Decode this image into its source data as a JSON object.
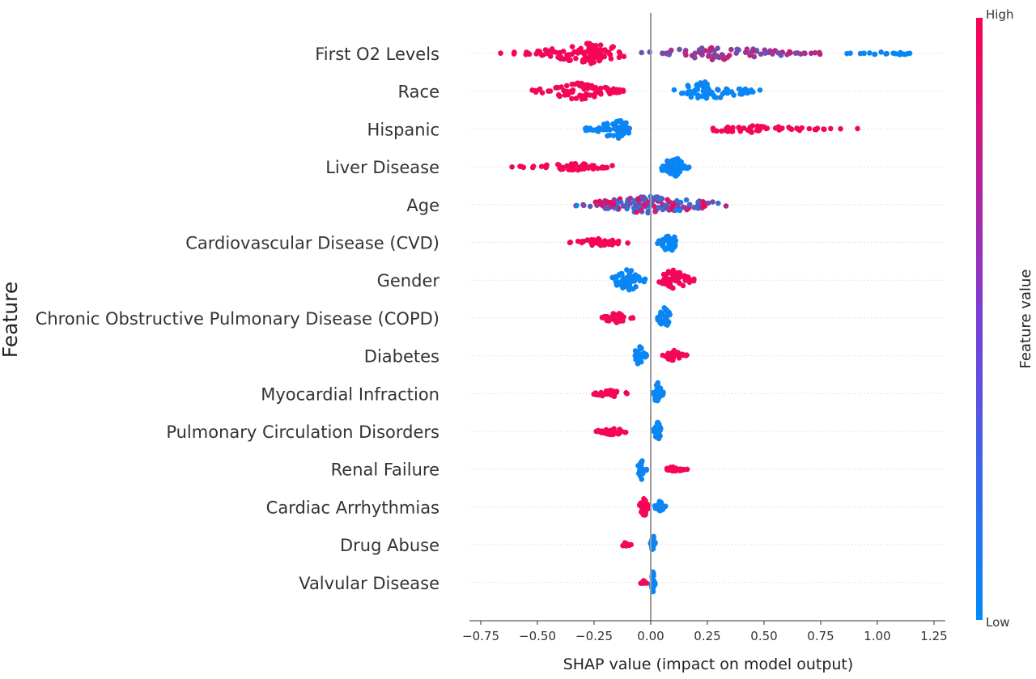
{
  "chart_data": {
    "type": "scatter",
    "subtype": "shap-beeswarm",
    "title": "",
    "xlabel": "SHAP value (impact on model output)",
    "ylabel": "Feature",
    "xlim": [
      -0.8,
      1.3
    ],
    "xticks": [
      -0.75,
      -0.5,
      -0.25,
      0.0,
      0.25,
      0.5,
      0.75,
      1.0,
      1.25
    ],
    "xtick_labels": [
      "−0.75",
      "−0.50",
      "−0.25",
      "0.00",
      "0.25",
      "0.50",
      "0.75",
      "1.00",
      "1.25"
    ],
    "grid": "horizontal dotted row guides",
    "colorbar": {
      "title": "Feature value",
      "high_label": "High",
      "low_label": "Low",
      "high_color": "#ff0052",
      "low_color": "#008bfb",
      "placement": "right"
    },
    "features": [
      {
        "name": "First O2 Levels",
        "groups": [
          {
            "xmin": -0.7,
            "xmax": -0.1,
            "peak": -0.27,
            "color": "high",
            "n": 110,
            "spread": 0.85
          },
          {
            "xmin": -0.1,
            "xmax": 0.78,
            "peak": 0.3,
            "color": "mid",
            "n": 85,
            "spread": 0.55
          },
          {
            "xmin": 0.82,
            "xmax": 1.24,
            "peak": 1.05,
            "color": "low",
            "n": 22,
            "spread": 0.15
          }
        ]
      },
      {
        "name": "Race",
        "groups": [
          {
            "xmin": -0.55,
            "xmax": -0.1,
            "peak": -0.33,
            "color": "high",
            "n": 75,
            "spread": 0.75
          },
          {
            "xmin": 0.1,
            "xmax": 0.54,
            "peak": 0.25,
            "color": "low",
            "n": 75,
            "spread": 0.8
          }
        ]
      },
      {
        "name": "Hispanic",
        "groups": [
          {
            "xmin": -0.32,
            "xmax": -0.08,
            "peak": -0.15,
            "color": "low",
            "n": 60,
            "spread": 0.85
          },
          {
            "xmin": 0.22,
            "xmax": 0.95,
            "peak": 0.45,
            "color": "high",
            "n": 60,
            "spread": 0.3
          }
        ]
      },
      {
        "name": "Liver Disease",
        "groups": [
          {
            "xmin": -0.65,
            "xmax": -0.12,
            "peak": -0.35,
            "color": "high",
            "n": 55,
            "spread": 0.3
          },
          {
            "xmin": 0.03,
            "xmax": 0.18,
            "peak": 0.1,
            "color": "low",
            "n": 55,
            "spread": 0.9
          }
        ]
      },
      {
        "name": "Age",
        "groups": [
          {
            "xmin": -0.38,
            "xmax": 0.4,
            "peak": 0.0,
            "color": "mixed",
            "n": 150,
            "spread": 0.75
          }
        ]
      },
      {
        "name": "Cardiovascular Disease (CVD)",
        "groups": [
          {
            "xmin": -0.37,
            "xmax": -0.09,
            "peak": -0.22,
            "color": "high",
            "n": 40,
            "spread": 0.35
          },
          {
            "xmin": 0.02,
            "xmax": 0.12,
            "peak": 0.08,
            "color": "low",
            "n": 40,
            "spread": 0.9
          }
        ]
      },
      {
        "name": "Gender",
        "groups": [
          {
            "xmin": -0.2,
            "xmax": -0.02,
            "peak": -0.1,
            "color": "low",
            "n": 55,
            "spread": 0.95
          },
          {
            "xmin": 0.03,
            "xmax": 0.21,
            "peak": 0.1,
            "color": "high",
            "n": 55,
            "spread": 0.95
          }
        ]
      },
      {
        "name": "Chronic Obstructive Pulmonary Disease (COPD)",
        "groups": [
          {
            "xmin": -0.23,
            "xmax": -0.07,
            "peak": -0.15,
            "color": "high",
            "n": 35,
            "spread": 0.45
          },
          {
            "xmin": 0.02,
            "xmax": 0.1,
            "peak": 0.06,
            "color": "low",
            "n": 35,
            "spread": 0.95
          }
        ]
      },
      {
        "name": "Diabetes",
        "groups": [
          {
            "xmin": -0.08,
            "xmax": -0.01,
            "peak": -0.05,
            "color": "low",
            "n": 30,
            "spread": 0.85
          },
          {
            "xmin": 0.04,
            "xmax": 0.17,
            "peak": 0.1,
            "color": "high",
            "n": 30,
            "spread": 0.45
          }
        ]
      },
      {
        "name": "Myocardial Infraction",
        "groups": [
          {
            "xmin": -0.28,
            "xmax": -0.08,
            "peak": -0.18,
            "color": "high",
            "n": 30,
            "spread": 0.3
          },
          {
            "xmin": 0.01,
            "xmax": 0.06,
            "peak": 0.03,
            "color": "low",
            "n": 30,
            "spread": 0.95
          }
        ]
      },
      {
        "name": "Pulmonary Circulation Disorders",
        "groups": [
          {
            "xmin": -0.26,
            "xmax": -0.08,
            "peak": -0.17,
            "color": "high",
            "n": 30,
            "spread": 0.3
          },
          {
            "xmin": 0.01,
            "xmax": 0.05,
            "peak": 0.03,
            "color": "low",
            "n": 30,
            "spread": 0.95
          }
        ]
      },
      {
        "name": "Renal Failure",
        "groups": [
          {
            "xmin": -0.06,
            "xmax": -0.01,
            "peak": -0.04,
            "color": "low",
            "n": 25,
            "spread": 0.85
          },
          {
            "xmin": 0.05,
            "xmax": 0.17,
            "peak": 0.1,
            "color": "high",
            "n": 25,
            "spread": 0.25
          }
        ]
      },
      {
        "name": "Cardiac Arrhythmias",
        "groups": [
          {
            "xmin": -0.06,
            "xmax": -0.01,
            "peak": -0.03,
            "color": "high",
            "n": 25,
            "spread": 0.9
          },
          {
            "xmin": 0.01,
            "xmax": 0.07,
            "peak": 0.04,
            "color": "low",
            "n": 20,
            "spread": 0.5
          }
        ]
      },
      {
        "name": "Drug Abuse",
        "groups": [
          {
            "xmin": -0.15,
            "xmax": -0.08,
            "peak": -0.12,
            "color": "high",
            "n": 10,
            "spread": 0.2
          },
          {
            "xmin": -0.003,
            "xmax": 0.02,
            "peak": 0.01,
            "color": "low",
            "n": 25,
            "spread": 0.95
          }
        ]
      },
      {
        "name": "Valvular Disease",
        "groups": [
          {
            "xmin": -0.05,
            "xmax": -0.01,
            "peak": -0.03,
            "color": "high",
            "n": 8,
            "spread": 0.2
          },
          {
            "xmin": -0.003,
            "xmax": 0.02,
            "peak": 0.01,
            "color": "low",
            "n": 25,
            "spread": 0.95
          }
        ]
      }
    ]
  }
}
